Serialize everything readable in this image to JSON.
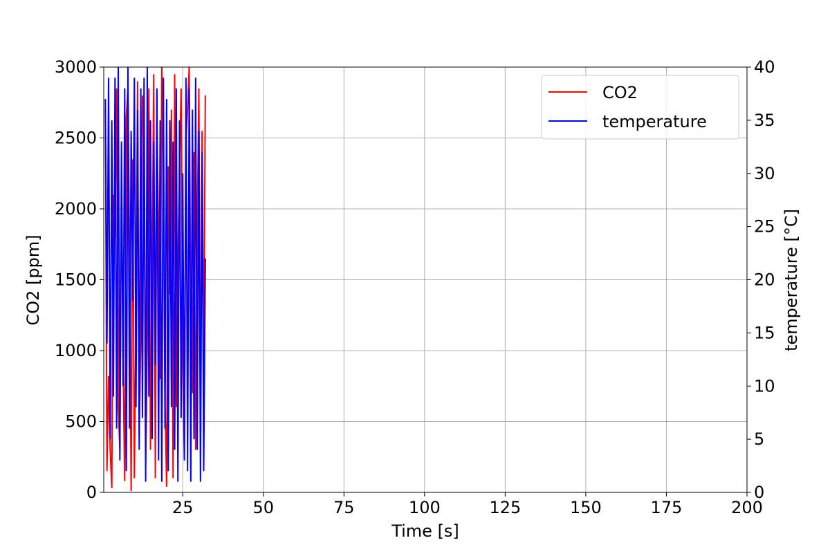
{
  "chart_data": {
    "type": "line",
    "xlabel": "Time [s]",
    "ylabel": "CO2 [ppm]",
    "y2label": "temperature [°C]",
    "x": [
      1,
      1.5,
      2,
      2.5,
      3,
      3.5,
      4,
      4.5,
      5,
      5.5,
      6,
      6.5,
      7,
      7.5,
      8,
      8.5,
      9,
      9.5,
      10,
      10.5,
      11,
      11.5,
      12,
      12.5,
      13,
      13.5,
      14,
      14.5,
      15,
      15.5,
      16,
      16.5,
      17,
      17.5,
      18,
      18.5,
      19,
      19.5,
      20,
      20.5,
      21,
      21.5,
      22,
      22.5,
      23,
      23.5,
      24,
      24.5,
      25,
      25.5,
      26,
      26.5,
      27,
      27.5,
      28,
      28.5,
      29,
      29.5,
      30,
      30.5,
      31,
      31.5,
      32
    ],
    "series": [
      {
        "name": "CO2",
        "color": "#ff0000",
        "axis": "y",
        "values": [
          2700,
          150,
          820,
          300,
          30,
          2100,
          1800,
          2850,
          600,
          300,
          2200,
          900,
          80,
          2650,
          2850,
          1700,
          10,
          2350,
          100,
          1250,
          2900,
          400,
          1100,
          2800,
          2450,
          200,
          1050,
          2850,
          300,
          1550,
          2950,
          100,
          2600,
          1850,
          800,
          3000,
          2100,
          650,
          40,
          2300,
          1400,
          2700,
          100,
          2950,
          600,
          1600,
          2300,
          2850,
          900,
          250,
          2500,
          2700,
          3000,
          1200,
          700,
          2400,
          300,
          1900,
          2850,
          500,
          2550,
          800,
          2800
        ]
      },
      {
        "name": "temperature",
        "color": "#0000ff",
        "axis": "y2",
        "values": [
          37,
          14,
          39,
          5,
          35,
          9,
          39,
          6,
          40,
          3,
          33,
          10,
          38,
          2,
          40,
          6,
          34,
          18,
          39,
          8,
          36,
          4,
          38,
          7,
          39,
          1,
          40,
          9,
          35,
          5,
          33,
          12,
          38,
          3,
          35,
          1,
          39,
          6,
          37,
          2,
          35,
          8,
          33,
          4,
          38,
          1,
          35,
          7,
          30,
          3,
          39,
          2,
          38,
          1,
          36,
          5,
          39,
          4,
          34,
          1,
          32,
          2,
          22
        ]
      }
    ],
    "xlim": [
      0.5,
      200
    ],
    "xticks": [
      25,
      50,
      75,
      100,
      125,
      150,
      175,
      200
    ],
    "ylim": [
      0,
      3000
    ],
    "yticks": [
      0,
      500,
      1000,
      1500,
      2000,
      2500,
      3000
    ],
    "y2lim": [
      0,
      40
    ],
    "y2ticks": [
      0,
      5,
      10,
      15,
      20,
      25,
      30,
      35,
      40
    ],
    "grid": true,
    "legend": "upper right"
  }
}
